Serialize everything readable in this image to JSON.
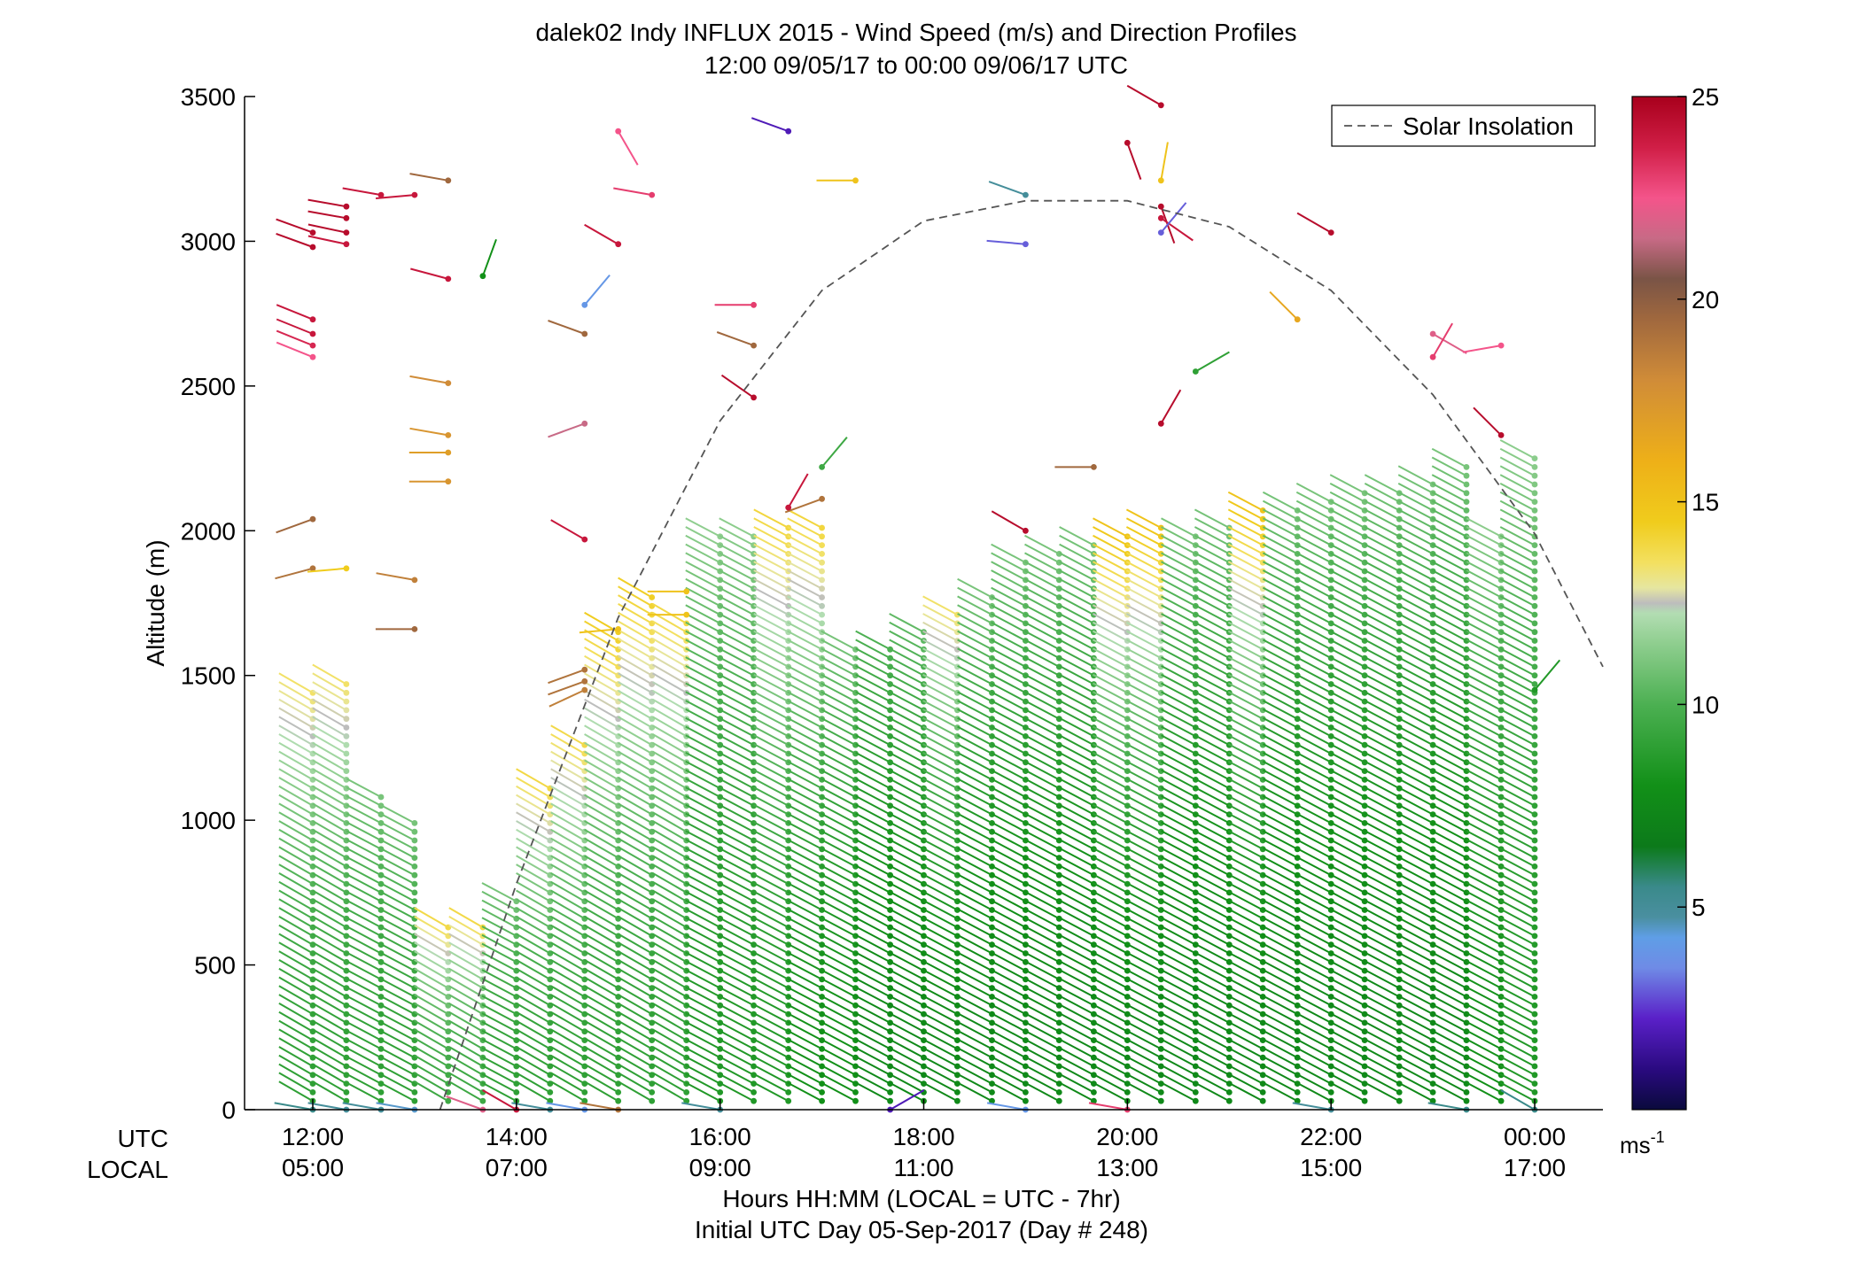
{
  "chart_data": {
    "type": "scatter",
    "title": "dalek02 Indy INFLUX 2015 - Wind Speed (m/s) and Direction Profiles",
    "subtitle": "12:00 09/05/17 to 00:00 09/06/17  UTC",
    "xlabel": "Hours HH:MM  (LOCAL = UTC - 7hr)",
    "xlabel2": "Initial UTC Day 05-Sep-2017 (Day # 248)",
    "ylabel": "Altitude (m)",
    "row_labels": [
      "UTC",
      "LOCAL"
    ],
    "x_range_hours_utc": [
      11.33,
      24.67
    ],
    "ylim": [
      0,
      3500
    ],
    "y_ticks": [
      0,
      500,
      1000,
      1500,
      2000,
      2500,
      3000,
      3500
    ],
    "x_ticks_utc": [
      12,
      14,
      16,
      18,
      20,
      22,
      24
    ],
    "x_tick_labels_utc": [
      "12:00",
      "14:00",
      "16:00",
      "18:00",
      "20:00",
      "22:00",
      "00:00"
    ],
    "x_tick_labels_local": [
      "05:00",
      "07:00",
      "09:00",
      "11:00",
      "13:00",
      "15:00",
      "17:00"
    ],
    "legend": {
      "label": "Solar Insolation",
      "position": "top-right"
    },
    "colorbar": {
      "range": [
        0,
        25
      ],
      "ticks": [
        5,
        10,
        15,
        20,
        25
      ],
      "tick_labels": [
        "5",
        "10",
        "15",
        "20",
        "25"
      ],
      "unit_label": "ms",
      "unit_exponent": "-1"
    },
    "solar_insolation_curve": {
      "style": "dashed",
      "color": "#555555",
      "points": [
        {
          "x": 13.25,
          "y": 0
        },
        {
          "x": 14.0,
          "y": 780
        },
        {
          "x": 15.0,
          "y": 1700
        },
        {
          "x": 16.0,
          "y": 2380
        },
        {
          "x": 17.0,
          "y": 2830
        },
        {
          "x": 18.0,
          "y": 3070
        },
        {
          "x": 19.0,
          "y": 3140
        },
        {
          "x": 20.0,
          "y": 3140
        },
        {
          "x": 21.0,
          "y": 3050
        },
        {
          "x": 22.0,
          "y": 2830
        },
        {
          "x": 23.0,
          "y": 2470
        },
        {
          "x": 24.0,
          "y": 1990
        },
        {
          "x": 24.67,
          "y": 1530
        }
      ]
    },
    "profiles": [
      {
        "x": 12.0,
        "top": 1450,
        "speed_low": 9.0,
        "speed_high": 13.5,
        "dir": 60
      },
      {
        "x": 12.33,
        "top": 1480,
        "speed_low": 9.0,
        "speed_high": 13.5,
        "dir": 60
      },
      {
        "x": 12.67,
        "top": 1080,
        "speed_low": 9.0,
        "speed_high": 11.0,
        "dir": 62
      },
      {
        "x": 13.0,
        "top": 1000,
        "speed_low": 9.0,
        "speed_high": 11.0,
        "dir": 62
      },
      {
        "x": 13.33,
        "top": 640,
        "speed_low": 9.5,
        "speed_high": 14.0,
        "dir": 60
      },
      {
        "x": 13.67,
        "top": 640,
        "speed_low": 9.5,
        "speed_high": 14.0,
        "dir": 60
      },
      {
        "x": 14.0,
        "top": 730,
        "speed_low": 9.0,
        "speed_high": 11.0,
        "dir": 62
      },
      {
        "x": 14.33,
        "top": 1120,
        "speed_low": 9.0,
        "speed_high": 14.0,
        "dir": 60
      },
      {
        "x": 14.67,
        "top": 1280,
        "speed_low": 9.0,
        "speed_high": 14.0,
        "dir": 60
      },
      {
        "x": 15.0,
        "top": 1660,
        "speed_low": 9.0,
        "speed_high": 14.5,
        "dir": 60
      },
      {
        "x": 15.33,
        "top": 1790,
        "speed_low": 9.0,
        "speed_high": 14.5,
        "dir": 60
      },
      {
        "x": 15.67,
        "top": 1700,
        "speed_low": 9.0,
        "speed_high": 14.0,
        "dir": 60
      },
      {
        "x": 16.0,
        "top": 1980,
        "speed_low": 8.5,
        "speed_high": 11.5,
        "dir": 62
      },
      {
        "x": 16.33,
        "top": 2000,
        "speed_low": 8.5,
        "speed_high": 11.5,
        "dir": 62
      },
      {
        "x": 16.67,
        "top": 2010,
        "speed_low": 8.5,
        "speed_high": 14.0,
        "dir": 62
      },
      {
        "x": 17.0,
        "top": 2010,
        "speed_low": 8.0,
        "speed_high": 14.0,
        "dir": 62
      },
      {
        "x": 17.33,
        "top": 1600,
        "speed_low": 8.0,
        "speed_high": 11.0,
        "dir": 62
      },
      {
        "x": 17.67,
        "top": 1590,
        "speed_low": 7.5,
        "speed_high": 10.0,
        "dir": 62
      },
      {
        "x": 18.0,
        "top": 1660,
        "speed_low": 7.5,
        "speed_high": 10.5,
        "dir": 62
      },
      {
        "x": 18.33,
        "top": 1720,
        "speed_low": 7.5,
        "speed_high": 13.5,
        "dir": 62
      },
      {
        "x": 18.67,
        "top": 1770,
        "speed_low": 7.5,
        "speed_high": 11.0,
        "dir": 62
      },
      {
        "x": 19.0,
        "top": 1890,
        "speed_low": 7.5,
        "speed_high": 11.0,
        "dir": 62
      },
      {
        "x": 19.33,
        "top": 1920,
        "speed_low": 7.5,
        "speed_high": 11.0,
        "dir": 62
      },
      {
        "x": 19.67,
        "top": 1950,
        "speed_low": 7.5,
        "speed_high": 11.0,
        "dir": 62
      },
      {
        "x": 20.0,
        "top": 1990,
        "speed_low": 7.5,
        "speed_high": 15.0,
        "dir": 62
      },
      {
        "x": 20.33,
        "top": 2010,
        "speed_low": 7.5,
        "speed_high": 15.0,
        "dir": 62
      },
      {
        "x": 20.67,
        "top": 1980,
        "speed_low": 7.5,
        "speed_high": 11.0,
        "dir": 62
      },
      {
        "x": 21.0,
        "top": 2030,
        "speed_low": 7.5,
        "speed_high": 11.0,
        "dir": 62
      },
      {
        "x": 21.33,
        "top": 2080,
        "speed_low": 7.5,
        "speed_high": 15.0,
        "dir": 62
      },
      {
        "x": 21.67,
        "top": 2090,
        "speed_low": 7.5,
        "speed_high": 11.0,
        "dir": 62
      },
      {
        "x": 22.0,
        "top": 2100,
        "speed_low": 7.5,
        "speed_high": 11.0,
        "dir": 62
      },
      {
        "x": 22.33,
        "top": 2130,
        "speed_low": 7.5,
        "speed_high": 11.0,
        "dir": 62
      },
      {
        "x": 22.67,
        "top": 2150,
        "speed_low": 7.5,
        "speed_high": 11.0,
        "dir": 62
      },
      {
        "x": 23.0,
        "top": 2170,
        "speed_low": 7.5,
        "speed_high": 11.0,
        "dir": 62
      },
      {
        "x": 23.33,
        "top": 2220,
        "speed_low": 7.5,
        "speed_high": 11.0,
        "dir": 62
      },
      {
        "x": 23.67,
        "top": 2000,
        "speed_low": 8.0,
        "speed_high": 11.5,
        "dir": 62
      },
      {
        "x": 24.0,
        "top": 2270,
        "speed_low": 8.5,
        "speed_high": 11.5,
        "dir": 62
      }
    ],
    "aloft_barbs": [
      {
        "x": 12.0,
        "y": 3030,
        "speed": 24.5,
        "dir": 70
      },
      {
        "x": 12.0,
        "y": 2980,
        "speed": 24.5,
        "dir": 70
      },
      {
        "x": 12.0,
        "y": 2730,
        "speed": 24.0,
        "dir": 68
      },
      {
        "x": 12.0,
        "y": 2680,
        "speed": 24.0,
        "dir": 68
      },
      {
        "x": 12.0,
        "y": 2640,
        "speed": 23.5,
        "dir": 68
      },
      {
        "x": 12.0,
        "y": 2600,
        "speed": 22.5,
        "dir": 68
      },
      {
        "x": 12.0,
        "y": 2040,
        "speed": 19.5,
        "dir": 110
      },
      {
        "x": 12.0,
        "y": 1870,
        "speed": 19.0,
        "dir": 105
      },
      {
        "x": 12.33,
        "y": 3120,
        "speed": 24.5,
        "dir": 80
      },
      {
        "x": 12.33,
        "y": 3080,
        "speed": 24.5,
        "dir": 80
      },
      {
        "x": 12.33,
        "y": 3030,
        "speed": 24.5,
        "dir": 78
      },
      {
        "x": 12.33,
        "y": 2990,
        "speed": 24.0,
        "dir": 78
      },
      {
        "x": 12.33,
        "y": 1870,
        "speed": 14.5,
        "dir": 95
      },
      {
        "x": 12.67,
        "y": 3160,
        "speed": 24.0,
        "dir": 80
      },
      {
        "x": 13.0,
        "y": 3160,
        "speed": 24.0,
        "dir": 95
      },
      {
        "x": 13.33,
        "y": 3210,
        "speed": 19.5,
        "dir": 80
      },
      {
        "x": 13.33,
        "y": 2870,
        "speed": 24.0,
        "dir": 75
      },
      {
        "x": 13.33,
        "y": 2510,
        "speed": 18.0,
        "dir": 80
      },
      {
        "x": 13.33,
        "y": 2330,
        "speed": 17.5,
        "dir": 80
      },
      {
        "x": 13.33,
        "y": 2270,
        "speed": 17.0,
        "dir": 90
      },
      {
        "x": 13.33,
        "y": 2170,
        "speed": 17.5,
        "dir": 90
      },
      {
        "x": 13.0,
        "y": 1830,
        "speed": 18.5,
        "dir": 80
      },
      {
        "x": 13.0,
        "y": 1660,
        "speed": 19.5,
        "dir": 90
      },
      {
        "x": 13.67,
        "y": 2880,
        "speed": 8.0,
        "dir": 340
      },
      {
        "x": 14.67,
        "y": 2780,
        "speed": 4.0,
        "dir": 320
      },
      {
        "x": 14.67,
        "y": 2680,
        "speed": 19.5,
        "dir": 70
      },
      {
        "x": 14.67,
        "y": 2370,
        "speed": 21.5,
        "dir": 110
      },
      {
        "x": 15.0,
        "y": 3380,
        "speed": 22.5,
        "dir": 210
      },
      {
        "x": 15.0,
        "y": 2990,
        "speed": 24.0,
        "dir": 60
      },
      {
        "x": 14.67,
        "y": 1970,
        "speed": 24.0,
        "dir": 60
      },
      {
        "x": 15.33,
        "y": 3160,
        "speed": 23.0,
        "dir": 80
      },
      {
        "x": 16.33,
        "y": 2460,
        "speed": 24.5,
        "dir": 55
      },
      {
        "x": 16.33,
        "y": 2640,
        "speed": 19.5,
        "dir": 70
      },
      {
        "x": 16.33,
        "y": 2780,
        "speed": 23.0,
        "dir": 90
      },
      {
        "x": 16.67,
        "y": 3380,
        "speed": 2.0,
        "dir": 70
      },
      {
        "x": 17.33,
        "y": 3210,
        "speed": 15.0,
        "dir": 90
      },
      {
        "x": 19.0,
        "y": 3160,
        "speed": 5.0,
        "dir": 70
      },
      {
        "x": 19.0,
        "y": 2990,
        "speed": 3.0,
        "dir": 85
      },
      {
        "x": 19.0,
        "y": 2000,
        "speed": 24.5,
        "dir": 60
      },
      {
        "x": 19.67,
        "y": 2220,
        "speed": 19.5,
        "dir": 90
      },
      {
        "x": 20.33,
        "y": 3470,
        "speed": 24.5,
        "dir": 60
      },
      {
        "x": 20.0,
        "y": 3340,
        "speed": 24.5,
        "dir": 200
      },
      {
        "x": 20.33,
        "y": 3210,
        "speed": 15.0,
        "dir": 350
      },
      {
        "x": 20.33,
        "y": 3120,
        "speed": 24.5,
        "dir": 200
      },
      {
        "x": 20.33,
        "y": 3080,
        "speed": 24.0,
        "dir": 235
      },
      {
        "x": 20.33,
        "y": 3030,
        "speed": 3.0,
        "dir": 320
      },
      {
        "x": 20.33,
        "y": 2370,
        "speed": 24.5,
        "dir": 330
      },
      {
        "x": 20.67,
        "y": 2550,
        "speed": 9.0,
        "dir": 300
      },
      {
        "x": 21.67,
        "y": 2730,
        "speed": 16.5,
        "dir": 45
      },
      {
        "x": 22.0,
        "y": 3030,
        "speed": 24.5,
        "dir": 60
      },
      {
        "x": 23.0,
        "y": 2680,
        "speed": 22.0,
        "dir": 240
      },
      {
        "x": 23.0,
        "y": 2600,
        "speed": 23.0,
        "dir": 330
      },
      {
        "x": 23.67,
        "y": 2640,
        "speed": 22.5,
        "dir": 100
      },
      {
        "x": 23.67,
        "y": 2330,
        "speed": 24.5,
        "dir": 45
      },
      {
        "x": 15.67,
        "y": 1790,
        "speed": 15.0,
        "dir": 90
      },
      {
        "x": 15.67,
        "y": 1710,
        "speed": 15.0,
        "dir": 90
      },
      {
        "x": 14.67,
        "y": 1520,
        "speed": 19.0,
        "dir": 110
      },
      {
        "x": 14.67,
        "y": 1480,
        "speed": 19.0,
        "dir": 110
      },
      {
        "x": 14.67,
        "y": 1450,
        "speed": 18.5,
        "dir": 115
      },
      {
        "x": 15.0,
        "y": 1660,
        "speed": 15.0,
        "dir": 95
      },
      {
        "x": 17.0,
        "y": 2110,
        "speed": 19.0,
        "dir": 110
      },
      {
        "x": 17.0,
        "y": 2220,
        "speed": 9.5,
        "dir": 320
      },
      {
        "x": 16.67,
        "y": 2080,
        "speed": 24.0,
        "dir": 330
      },
      {
        "x": 24.0,
        "y": 1450,
        "speed": 8.5,
        "dir": 320
      }
    ],
    "surface_barbs": [
      {
        "x": 12.0,
        "speed": 5.5,
        "dir": 80
      },
      {
        "x": 12.33,
        "speed": 5.0,
        "dir": 80
      },
      {
        "x": 12.67,
        "speed": 5.0,
        "dir": 80
      },
      {
        "x": 13.0,
        "speed": 4.5,
        "dir": 80
      },
      {
        "x": 13.67,
        "speed": 22.0,
        "dir": 70
      },
      {
        "x": 14.0,
        "speed": 24.0,
        "dir": 60
      },
      {
        "x": 14.33,
        "speed": 5.0,
        "dir": 80
      },
      {
        "x": 14.67,
        "speed": 4.0,
        "dir": 80
      },
      {
        "x": 15.0,
        "speed": 19.0,
        "dir": 80
      },
      {
        "x": 16.0,
        "speed": 5.0,
        "dir": 80
      },
      {
        "x": 17.67,
        "speed": 2.0,
        "dir": 300
      },
      {
        "x": 19.0,
        "speed": 4.0,
        "dir": 80
      },
      {
        "x": 20.0,
        "speed": 23.0,
        "dir": 80
      },
      {
        "x": 22.0,
        "speed": 5.0,
        "dir": 80
      },
      {
        "x": 23.33,
        "speed": 5.5,
        "dir": 80
      },
      {
        "x": 24.0,
        "speed": 5.5,
        "dir": 60
      }
    ]
  }
}
